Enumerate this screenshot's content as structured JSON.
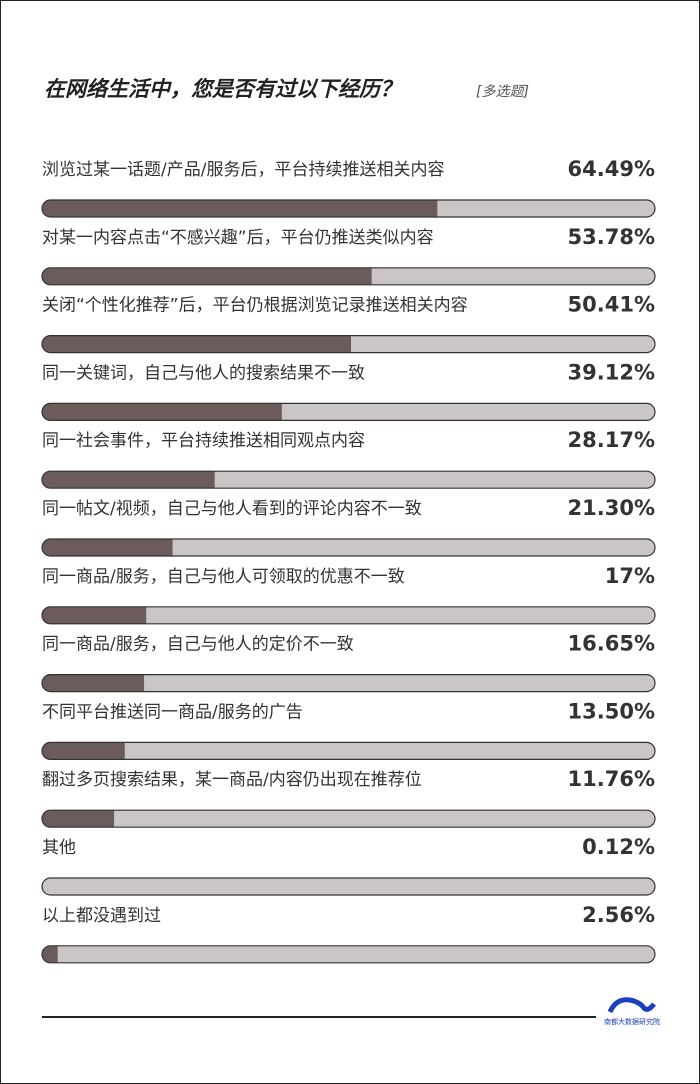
{
  "chart_data": {
    "type": "bar",
    "orientation": "horizontal",
    "title": "在网络生活中，您是否有过以下经历？",
    "subtitle": "[多选题]",
    "source": "南都大数据研究院",
    "categories": [
      "浏览过某一话题/产品/服务后，平台持续推送相关内容",
      "对某一内容点击“不感兴趣”后，平台仍推送类似内容",
      "关闭“个性化推荐”后，平台仍根据浏览记录推送相关内容",
      "同一关键词，自己与他人的搜索结果不一致",
      "同一社会事件，平台持续推送相同观点内容",
      "同一帖文/视频，自己与他人看到的评论内容不一致",
      "同一商品/服务，自己与他人可领取的优惠不一致",
      "同一商品/服务，自己与他人的定价不一致",
      "不同平台推送同一商品/服务的广告",
      "翻过多页搜索结果，某一商品/内容仍出现在推荐位",
      "其他",
      "以上都没遇到过"
    ],
    "values": [
      64.49,
      53.78,
      50.41,
      39.12,
      28.17,
      21.3,
      17,
      16.65,
      13.5,
      11.76,
      0.12,
      2.56
    ],
    "value_labels": [
      "64.49%",
      "53.78%",
      "50.41%",
      "39.12%",
      "28.17%",
      "21.30%",
      "17%",
      "16.65%",
      "13.50%",
      "11.76%",
      "0.12%",
      "2.56%"
    ],
    "xlim": [
      0,
      100
    ],
    "color": "#6b5b5b",
    "track_color": "#cbc6c6"
  }
}
